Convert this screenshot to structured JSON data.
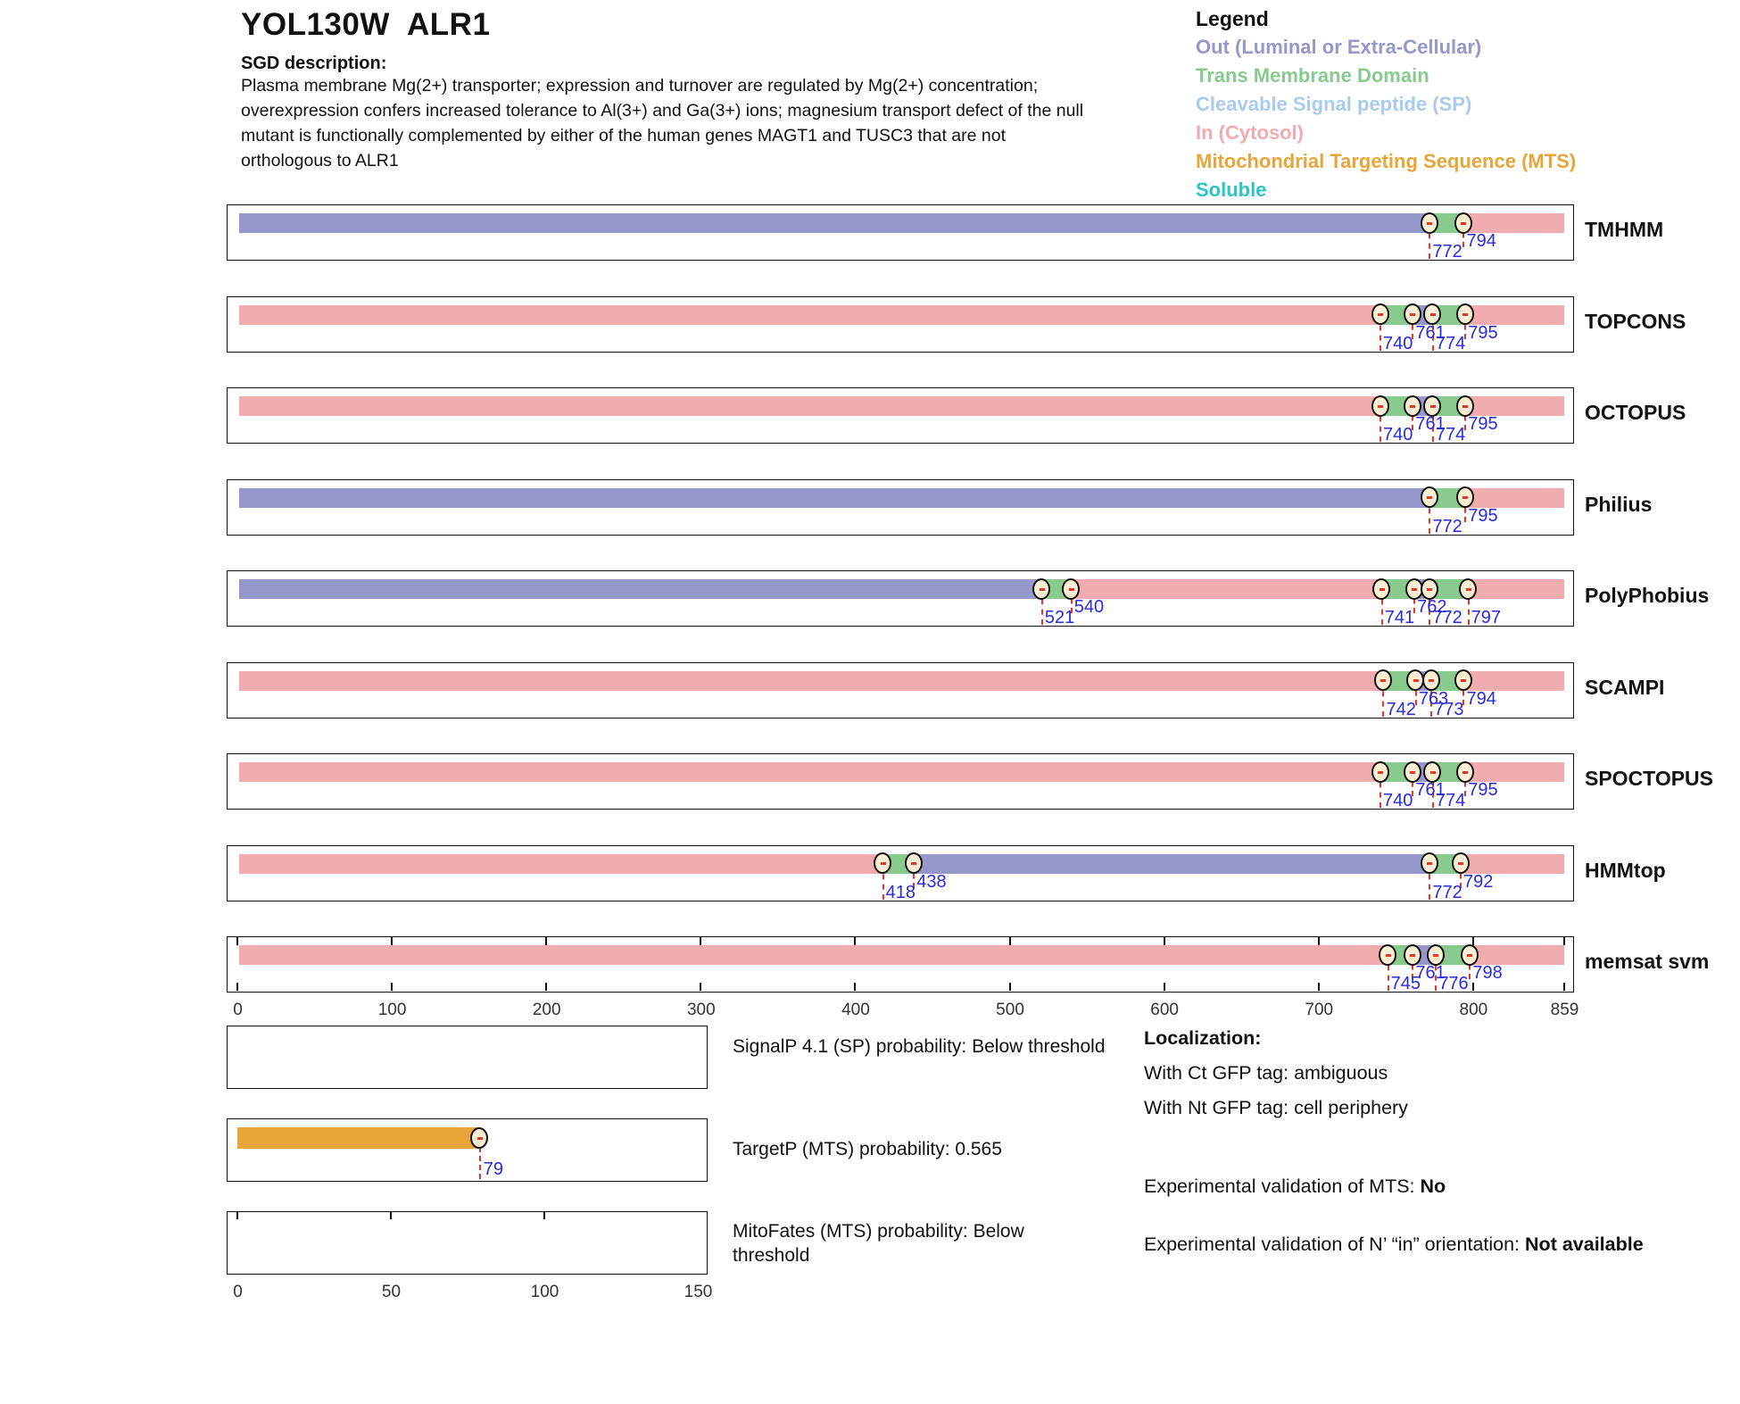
{
  "header": {
    "title": "YOL130W  ALR1",
    "sgd_label": "SGD description:",
    "description": "Plasma membrane Mg(2+) transporter; expression and turnover are regulated by Mg(2+) concentration;\noverexpression confers increased tolerance to Al(3+) and Ga(3+) ions; magnesium transport defect of the null\nmutant is functionally complemented by either of the human genes MAGT1 and TUSC3 that are not\northologous to ALR1"
  },
  "colors": {
    "out": "#9697CB",
    "tm": "#89CA8E",
    "sp": "#A9CBEE",
    "in": "#F0ACAF",
    "mts": "#E8A63A",
    "soluble": "#2BC6C4",
    "marker_fill": "#FBEED3",
    "line_red": "#E8352B",
    "label_blue": "#2A2ADF"
  },
  "legend": {
    "title": "Legend",
    "items": [
      {
        "label": "Out (Luminal or Extra-Cellular)",
        "color_key": "out"
      },
      {
        "label": "Trans Membrane Domain",
        "color_key": "tm"
      },
      {
        "label": "Cleavable Signal peptide (SP)",
        "color_key": "sp"
      },
      {
        "label": "In (Cytosol)",
        "color_key": "in"
      },
      {
        "label": "Mitochondrial Targeting Sequence (MTS)",
        "color_key": "mts"
      },
      {
        "label": "Soluble",
        "color_key": "soluble"
      }
    ]
  },
  "chart_data": {
    "type": "bar",
    "x_range": [
      0,
      859
    ],
    "x_ticks": [
      0,
      100,
      200,
      300,
      400,
      500,
      600,
      700,
      800,
      859
    ],
    "sub_x_range": [
      0,
      150
    ],
    "sub_x_ticks": [
      0,
      50,
      100,
      150
    ],
    "tracks": [
      {
        "name": "TMHMM",
        "segments": [
          {
            "start": 1,
            "end": 772,
            "region": "out"
          },
          {
            "start": 772,
            "end": 794,
            "region": "tm"
          },
          {
            "start": 794,
            "end": 859,
            "region": "in"
          }
        ],
        "markers": [
          {
            "pos": 772,
            "label": "772",
            "row": "low"
          },
          {
            "pos": 794,
            "label": "794",
            "row": "high"
          }
        ]
      },
      {
        "name": "TOPCONS",
        "segments": [
          {
            "start": 1,
            "end": 740,
            "region": "in"
          },
          {
            "start": 740,
            "end": 761,
            "region": "tm"
          },
          {
            "start": 761,
            "end": 774,
            "region": "out"
          },
          {
            "start": 774,
            "end": 795,
            "region": "tm"
          },
          {
            "start": 795,
            "end": 859,
            "region": "in"
          }
        ],
        "markers": [
          {
            "pos": 740,
            "label": "740",
            "row": "low"
          },
          {
            "pos": 761,
            "label": "761",
            "row": "high"
          },
          {
            "pos": 774,
            "label": "774",
            "row": "low"
          },
          {
            "pos": 795,
            "label": "795",
            "row": "high"
          }
        ]
      },
      {
        "name": "OCTOPUS",
        "segments": [
          {
            "start": 1,
            "end": 740,
            "region": "in"
          },
          {
            "start": 740,
            "end": 761,
            "region": "tm"
          },
          {
            "start": 761,
            "end": 774,
            "region": "out"
          },
          {
            "start": 774,
            "end": 795,
            "region": "tm"
          },
          {
            "start": 795,
            "end": 859,
            "region": "in"
          }
        ],
        "markers": [
          {
            "pos": 740,
            "label": "740",
            "row": "low"
          },
          {
            "pos": 761,
            "label": "761",
            "row": "high"
          },
          {
            "pos": 774,
            "label": "774",
            "row": "low"
          },
          {
            "pos": 795,
            "label": "795",
            "row": "high"
          }
        ]
      },
      {
        "name": "Philius",
        "segments": [
          {
            "start": 1,
            "end": 772,
            "region": "out"
          },
          {
            "start": 772,
            "end": 795,
            "region": "tm"
          },
          {
            "start": 795,
            "end": 859,
            "region": "in"
          }
        ],
        "markers": [
          {
            "pos": 772,
            "label": "772",
            "row": "low"
          },
          {
            "pos": 795,
            "label": "795",
            "row": "high"
          }
        ]
      },
      {
        "name": "PolyPhobius",
        "segments": [
          {
            "start": 1,
            "end": 521,
            "region": "out"
          },
          {
            "start": 521,
            "end": 540,
            "region": "tm"
          },
          {
            "start": 540,
            "end": 741,
            "region": "in"
          },
          {
            "start": 741,
            "end": 762,
            "region": "tm"
          },
          {
            "start": 762,
            "end": 772,
            "region": "out"
          },
          {
            "start": 772,
            "end": 797,
            "region": "tm"
          },
          {
            "start": 797,
            "end": 859,
            "region": "in"
          }
        ],
        "markers": [
          {
            "pos": 521,
            "label": "521",
            "row": "low"
          },
          {
            "pos": 540,
            "label": "540",
            "row": "high"
          },
          {
            "pos": 741,
            "label": "741",
            "row": "low"
          },
          {
            "pos": 762,
            "label": "762",
            "row": "high"
          },
          {
            "pos": 772,
            "label": "772",
            "row": "low"
          },
          {
            "pos": 797,
            "label": "797",
            "row": "low"
          }
        ]
      },
      {
        "name": "SCAMPI",
        "segments": [
          {
            "start": 1,
            "end": 742,
            "region": "in"
          },
          {
            "start": 742,
            "end": 763,
            "region": "tm"
          },
          {
            "start": 763,
            "end": 773,
            "region": "out"
          },
          {
            "start": 773,
            "end": 794,
            "region": "tm"
          },
          {
            "start": 794,
            "end": 859,
            "region": "in"
          }
        ],
        "markers": [
          {
            "pos": 742,
            "label": "742",
            "row": "low"
          },
          {
            "pos": 763,
            "label": "763",
            "row": "high"
          },
          {
            "pos": 773,
            "label": "773",
            "row": "low"
          },
          {
            "pos": 794,
            "label": "794",
            "row": "high"
          }
        ]
      },
      {
        "name": "SPOCTOPUS",
        "segments": [
          {
            "start": 1,
            "end": 740,
            "region": "in"
          },
          {
            "start": 740,
            "end": 761,
            "region": "tm"
          },
          {
            "start": 761,
            "end": 774,
            "region": "out"
          },
          {
            "start": 774,
            "end": 795,
            "region": "tm"
          },
          {
            "start": 795,
            "end": 859,
            "region": "in"
          }
        ],
        "markers": [
          {
            "pos": 740,
            "label": "740",
            "row": "low"
          },
          {
            "pos": 761,
            "label": "761",
            "row": "high"
          },
          {
            "pos": 774,
            "label": "774",
            "row": "low"
          },
          {
            "pos": 795,
            "label": "795",
            "row": "high"
          }
        ]
      },
      {
        "name": "HMMtop",
        "segments": [
          {
            "start": 1,
            "end": 418,
            "region": "in"
          },
          {
            "start": 418,
            "end": 438,
            "region": "tm"
          },
          {
            "start": 438,
            "end": 772,
            "region": "out"
          },
          {
            "start": 772,
            "end": 792,
            "region": "tm"
          },
          {
            "start": 792,
            "end": 859,
            "region": "in"
          }
        ],
        "markers": [
          {
            "pos": 418,
            "label": "418",
            "row": "low"
          },
          {
            "pos": 438,
            "label": "438",
            "row": "high"
          },
          {
            "pos": 772,
            "label": "772",
            "row": "low"
          },
          {
            "pos": 792,
            "label": "792",
            "row": "high"
          }
        ]
      },
      {
        "name": "memsat svm",
        "axis_ticks": true,
        "segments": [
          {
            "start": 1,
            "end": 745,
            "region": "in"
          },
          {
            "start": 745,
            "end": 761,
            "region": "tm"
          },
          {
            "start": 761,
            "end": 776,
            "region": "out"
          },
          {
            "start": 776,
            "end": 798,
            "region": "tm"
          },
          {
            "start": 798,
            "end": 859,
            "region": "in"
          }
        ],
        "markers": [
          {
            "pos": 745,
            "label": "745",
            "row": "low"
          },
          {
            "pos": 761,
            "label": "761",
            "row": "high"
          },
          {
            "pos": 776,
            "label": "776",
            "row": "low"
          },
          {
            "pos": 798,
            "label": "798",
            "row": "high"
          }
        ]
      }
    ],
    "subplots": [
      {
        "name": "SignalP",
        "bar": null,
        "top_ticks": false
      },
      {
        "name": "TargetP",
        "bar": {
          "start": 1,
          "end": 79,
          "region": "mts"
        },
        "marker": {
          "pos": 79,
          "label": "79"
        },
        "top_ticks": false
      },
      {
        "name": "MitoFates",
        "bar": null,
        "top_ticks": true
      }
    ]
  },
  "captions": {
    "signalp": "SignalP 4.1 (SP) probability: Below threshold",
    "targetp": "TargetP (MTS) probability: 0.565",
    "mitofates": "MitoFates (MTS) probability: Below\nthreshold"
  },
  "localization": {
    "title": "Localization:",
    "ct": "With Ct GFP tag: ambiguous",
    "nt": "With Nt GFP tag: cell periphery",
    "mts_prefix": "Experimental validation of MTS: ",
    "mts_value": "No",
    "orient_prefix": "Experimental validation of N’ “in” orientation: ",
    "orient_value": "Not available"
  }
}
